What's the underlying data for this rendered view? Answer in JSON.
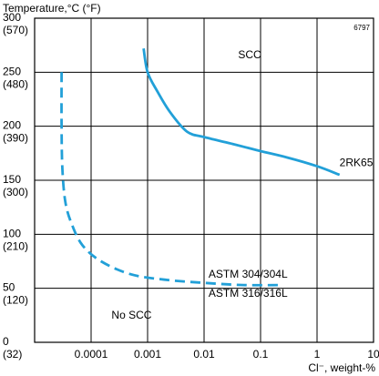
{
  "figure_id": "6797",
  "chart_data": {
    "type": "line",
    "title": "",
    "ylabel": "Temperature,°C (°F)",
    "xlabel": "Cl⁻, weight-%",
    "x_scale": "log",
    "xlim": [
      1e-05,
      10
    ],
    "ylim": [
      0,
      300
    ],
    "x_ticks": [
      {
        "value": 0.0001,
        "label": "0.0001"
      },
      {
        "value": 0.001,
        "label": "0.001"
      },
      {
        "value": 0.01,
        "label": "0.01"
      },
      {
        "value": 0.1,
        "label": "0.1"
      },
      {
        "value": 1,
        "label": "1"
      },
      {
        "value": 10,
        "label": "10"
      }
    ],
    "y_ticks": [
      {
        "value": 0,
        "label": "0",
        "sub": "(32)"
      },
      {
        "value": 50,
        "label": "50",
        "sub": "(120)"
      },
      {
        "value": 100,
        "label": "100",
        "sub": "(210)"
      },
      {
        "value": 150,
        "label": "150",
        "sub": "(300)"
      },
      {
        "value": 200,
        "label": "200",
        "sub": "(390)"
      },
      {
        "value": 250,
        "label": "250",
        "sub": "(480)"
      },
      {
        "value": 300,
        "label": "300",
        "sub": "(570)"
      }
    ],
    "grid": true,
    "line_color": "#22a0d8",
    "series": [
      {
        "name": "2RK65",
        "dash": false,
        "points": [
          {
            "x": 0.00085,
            "y": 272
          },
          {
            "x": 0.001,
            "y": 250
          },
          {
            "x": 0.0015,
            "y": 232
          },
          {
            "x": 0.0025,
            "y": 213
          },
          {
            "x": 0.005,
            "y": 195
          },
          {
            "x": 0.01,
            "y": 190
          },
          {
            "x": 0.03,
            "y": 184
          },
          {
            "x": 0.1,
            "y": 177
          },
          {
            "x": 0.3,
            "y": 171
          },
          {
            "x": 1,
            "y": 163
          },
          {
            "x": 2.5,
            "y": 155
          }
        ]
      },
      {
        "name": "ASTM 304/304L",
        "dash": true,
        "points": [
          {
            "x": 3e-05,
            "y": 250
          },
          {
            "x": 3e-05,
            "y": 200
          },
          {
            "x": 3.1e-05,
            "y": 160
          },
          {
            "x": 3.5e-05,
            "y": 130
          },
          {
            "x": 4.5e-05,
            "y": 110
          },
          {
            "x": 7e-05,
            "y": 90
          },
          {
            "x": 0.00015,
            "y": 75
          },
          {
            "x": 0.0005,
            "y": 63
          },
          {
            "x": 0.002,
            "y": 58
          },
          {
            "x": 0.01,
            "y": 55
          },
          {
            "x": 0.05,
            "y": 53
          },
          {
            "x": 0.25,
            "y": 53
          }
        ]
      }
    ],
    "annotations": [
      {
        "text": "SCC",
        "x": 0.04,
        "y": 263
      },
      {
        "text": "No SCC",
        "x": 0.00023,
        "y": 22
      },
      {
        "text": "ASTM 304/304L",
        "x": 0.012,
        "y": 60
      },
      {
        "text": "ASTM 316/316L",
        "x": 0.012,
        "y": 42
      },
      {
        "text": "2RK65",
        "x": 2.5,
        "y": 163
      }
    ]
  }
}
